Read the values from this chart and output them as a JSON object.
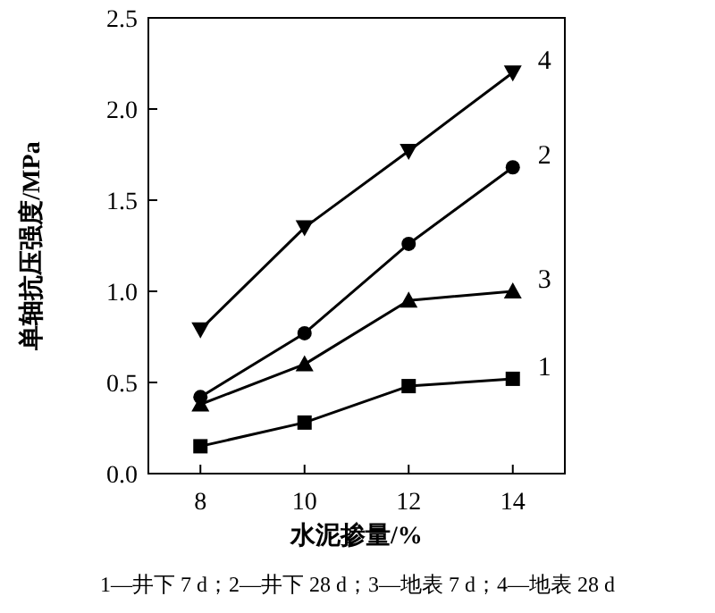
{
  "chart_data": {
    "type": "line",
    "xlabel": "水泥掺量/%",
    "ylabel": "单轴抗压强度/MPa",
    "x": [
      8,
      10,
      12,
      14
    ],
    "series": [
      {
        "name": "1",
        "color": "#000000",
        "marker": "square",
        "values": [
          0.15,
          0.28,
          0.48,
          0.52
        ]
      },
      {
        "name": "2",
        "color": "#000000",
        "marker": "circle",
        "values": [
          0.42,
          0.77,
          1.26,
          1.68
        ]
      },
      {
        "name": "3",
        "color": "#000000",
        "marker": "triangle",
        "values": [
          0.38,
          0.6,
          0.95,
          1.0
        ]
      },
      {
        "name": "4",
        "color": "#000000",
        "marker": "triangle_down",
        "values": [
          0.79,
          1.35,
          1.77,
          2.2
        ]
      }
    ],
    "xlim": [
      7,
      15
    ],
    "xticks": [
      8,
      10,
      12,
      14
    ],
    "ylim": [
      0,
      2.5
    ],
    "yticks": [
      {
        "value": 0,
        "label": "0.0"
      },
      {
        "value": 0.5,
        "label": "0.5"
      },
      {
        "value": 1,
        "label": "1.0"
      },
      {
        "value": 1.5,
        "label": "1.5"
      },
      {
        "value": 2,
        "label": "2.0"
      },
      {
        "value": 2.5,
        "label": "2.5"
      }
    ],
    "grid": false,
    "line_style": "solid",
    "annotations": [
      "1—井下 7 d；2—井下 28 d；3—地表 7 d；4—地表 28 d"
    ]
  }
}
